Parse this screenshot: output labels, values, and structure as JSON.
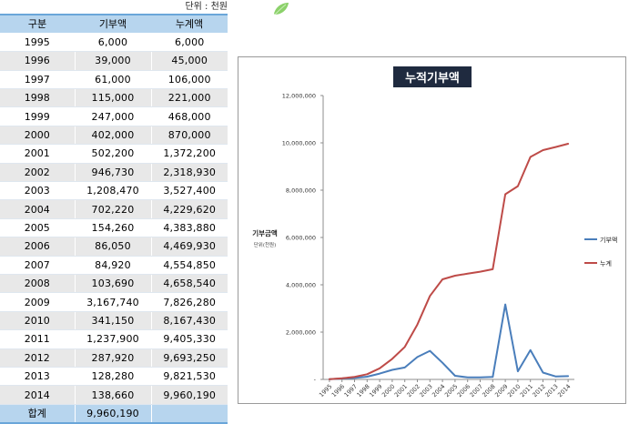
{
  "unit_note": "단위 : 천원",
  "table": {
    "headers": [
      "구분",
      "기부액",
      "누계액"
    ],
    "rows": [
      [
        "1995",
        "6,000",
        "6,000"
      ],
      [
        "1996",
        "39,000",
        "45,000"
      ],
      [
        "1997",
        "61,000",
        "106,000"
      ],
      [
        "1998",
        "115,000",
        "221,000"
      ],
      [
        "1999",
        "247,000",
        "468,000"
      ],
      [
        "2000",
        "402,000",
        "870,000"
      ],
      [
        "2001",
        "502,200",
        "1,372,200"
      ],
      [
        "2002",
        "946,730",
        "2,318,930"
      ],
      [
        "2003",
        "1,208,470",
        "3,527,400"
      ],
      [
        "2004",
        "702,220",
        "4,229,620"
      ],
      [
        "2005",
        "154,260",
        "4,383,880"
      ],
      [
        "2006",
        "86,050",
        "4,469,930"
      ],
      [
        "2007",
        "84,920",
        "4,554,850"
      ],
      [
        "2008",
        "103,690",
        "4,658,540"
      ],
      [
        "2009",
        "3,167,740",
        "7,826,280"
      ],
      [
        "2010",
        "341,150",
        "8,167,430"
      ],
      [
        "2011",
        "1,237,900",
        "9,405,330"
      ],
      [
        "2012",
        "287,920",
        "9,693,250"
      ],
      [
        "2013",
        "128,280",
        "9,821,530"
      ],
      [
        "2014",
        "138,660",
        "9,960,190"
      ]
    ],
    "total": [
      "합계",
      "9,960,190",
      ""
    ]
  },
  "chart_data": {
    "type": "line",
    "title": "누적기부액",
    "ylabel": "기부금액",
    "ylabel_unit": "단위(천원)",
    "xlabel": "",
    "categories": [
      "1995",
      "1996",
      "1997",
      "1998",
      "1999",
      "2000",
      "2001",
      "2002",
      "2003",
      "2004",
      "2005",
      "2006",
      "2007",
      "2008",
      "2009",
      "2010",
      "2011",
      "2012",
      "2013",
      "2014"
    ],
    "ylim": [
      0,
      12000000
    ],
    "yticks": [
      0,
      2000000,
      4000000,
      6000000,
      8000000,
      10000000,
      12000000
    ],
    "ytick_labels": [
      "-",
      "2,000,000",
      "4,000,000",
      "6,000,000",
      "8,000,000",
      "10,000,000",
      "12,000,000"
    ],
    "grid": false,
    "legend_position": "right",
    "series": [
      {
        "name": "기부액",
        "color": "#4a7ebb",
        "values": [
          6000,
          39000,
          61000,
          115000,
          247000,
          402000,
          502200,
          946730,
          1208470,
          702220,
          154260,
          86050,
          84920,
          103690,
          3167740,
          341150,
          1237900,
          287920,
          128280,
          138660
        ]
      },
      {
        "name": "누계",
        "color": "#be4b48",
        "values": [
          6000,
          45000,
          106000,
          221000,
          468000,
          870000,
          1372200,
          2318930,
          3527400,
          4229620,
          4383880,
          4469930,
          4554850,
          4658540,
          7826280,
          8167430,
          9405330,
          9693250,
          9821530,
          9960190
        ]
      }
    ],
    "title_bg": "#1f2a3f",
    "title_color": "#ffffff"
  }
}
